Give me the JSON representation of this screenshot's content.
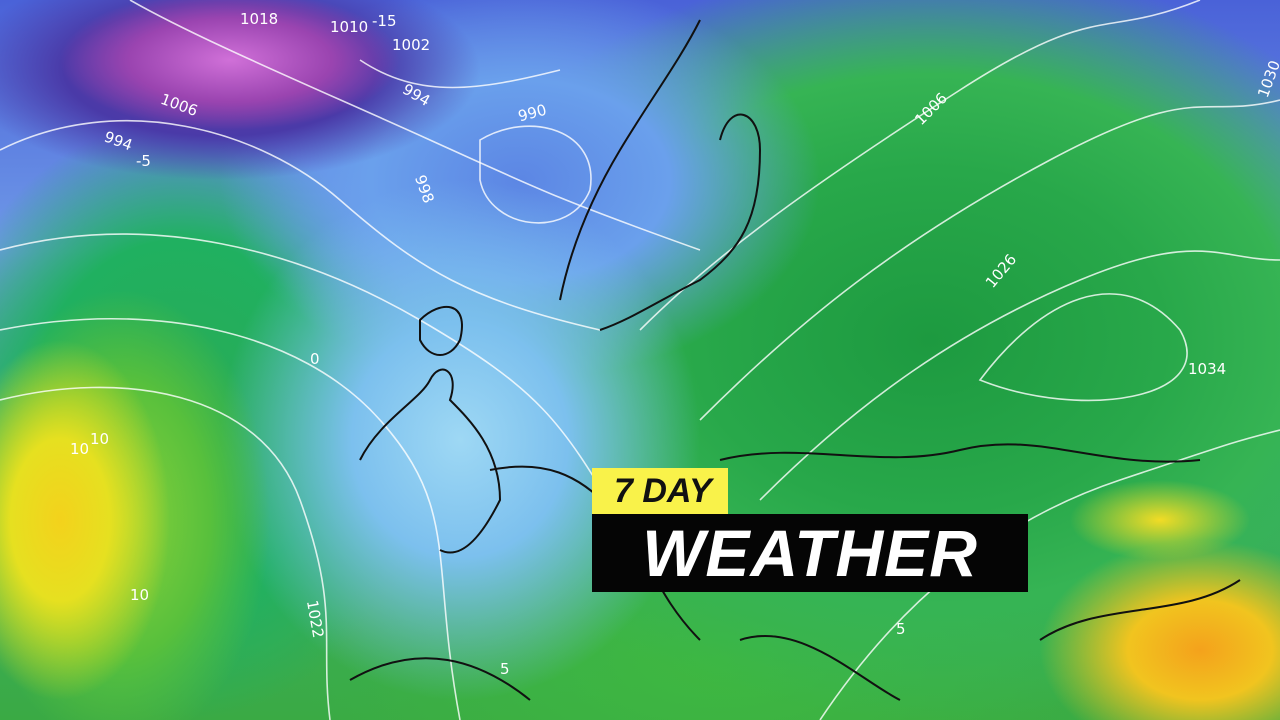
{
  "title": {
    "line1": "7 DAY",
    "line2": "WEATHER",
    "line1_bg": "#f9f24a",
    "line2_bg": "#050505"
  },
  "isobar_labels": [
    "1018",
    "1010",
    "-15",
    "1002",
    "1006",
    "994",
    "990",
    "998",
    "994",
    "-5",
    "1006",
    "1026",
    "1034",
    "1022",
    "10",
    "10",
    "0",
    "5",
    "5",
    "1030",
    "10"
  ],
  "colors": {
    "low_pressure": "#9a44b0",
    "cold": "#6aa0ec",
    "mild": "#28a84a",
    "warm": "#f3d21c",
    "hot": "#f4a21c"
  }
}
